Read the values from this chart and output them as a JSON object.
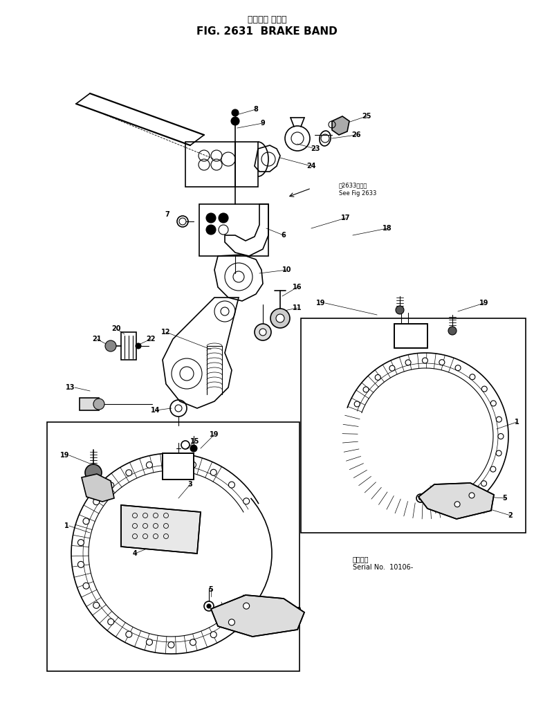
{
  "title_japanese": "ブレーキ バンド",
  "title_english": "FIG. 2631  BRAKE BAND",
  "bg": "#ffffff",
  "fig_width": 7.72,
  "fig_height": 10.16,
  "dpi": 100,
  "see_fig_jp": "図2633図参照",
  "see_fig_en": "See Fig 2633",
  "serial_jp": "適用号竜",
  "serial_en": "Serial No.  10106-"
}
